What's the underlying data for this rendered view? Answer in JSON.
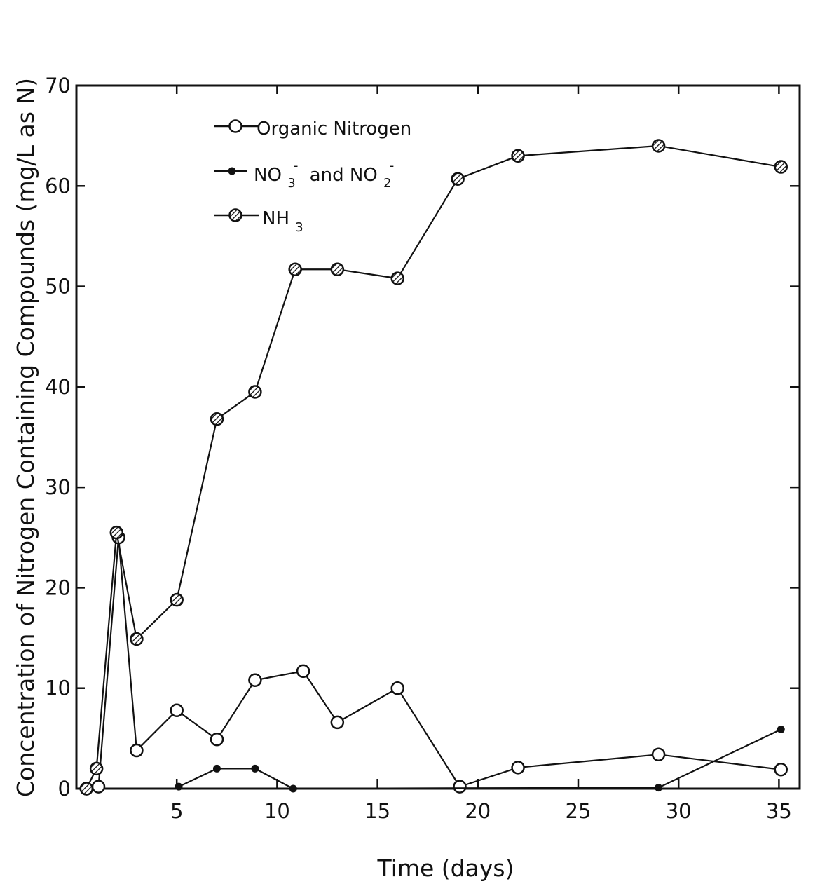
{
  "chart_data": {
    "type": "line",
    "title": "",
    "xlabel": "Time (days)",
    "ylabel": "Concentration of Nitrogen Containing Compounds (mg/L as N)",
    "xlim": [
      0,
      35.5
    ],
    "ylim": [
      0,
      70
    ],
    "x_ticks": [
      5,
      10,
      15,
      20,
      25,
      30,
      35
    ],
    "y_ticks": [
      0,
      10,
      20,
      30,
      40,
      50,
      60,
      70
    ],
    "grid": false,
    "legend_position": "top-left",
    "colors": {
      "line": "#111111",
      "background": "#ffffff"
    },
    "series": [
      {
        "name": "Organic Nitrogen",
        "marker": "open-circle",
        "x": [
          0.5,
          1.1,
          2.1,
          3.0,
          5.0,
          7.0,
          8.9,
          11.3,
          13.0,
          16.0,
          19.1,
          22.0,
          29.0,
          35.1
        ],
        "y": [
          0,
          0.2,
          25.0,
          3.8,
          7.8,
          4.9,
          10.8,
          11.7,
          6.6,
          10.0,
          0.2,
          2.1,
          3.4,
          1.9
        ]
      },
      {
        "name": "NO3- and NO2-",
        "marker": "filled-dot",
        "x": [
          5.1,
          7.0,
          8.9,
          10.8,
          29.0,
          35.1
        ],
        "y": [
          0.2,
          2.0,
          2.0,
          0,
          0.1,
          5.9
        ]
      },
      {
        "name": "NH3",
        "marker": "hatched-circle",
        "x": [
          0.5,
          1.0,
          2.0,
          3.0,
          5.0,
          7.0,
          8.9,
          10.9,
          13.0,
          16.0,
          19.0,
          22.0,
          29.0,
          35.1
        ],
        "y": [
          0,
          2.0,
          25.5,
          14.9,
          18.8,
          36.8,
          39.5,
          51.7,
          51.7,
          50.8,
          60.7,
          63.0,
          64.0,
          61.9
        ]
      }
    ]
  },
  "legend": {
    "organic": "Organic Nitrogen",
    "nox_a": "NO",
    "nox_b": "and NO",
    "sub3": "3",
    "sub2": "2",
    "sup": "-",
    "nh": "NH",
    "nh_sub": "3"
  }
}
